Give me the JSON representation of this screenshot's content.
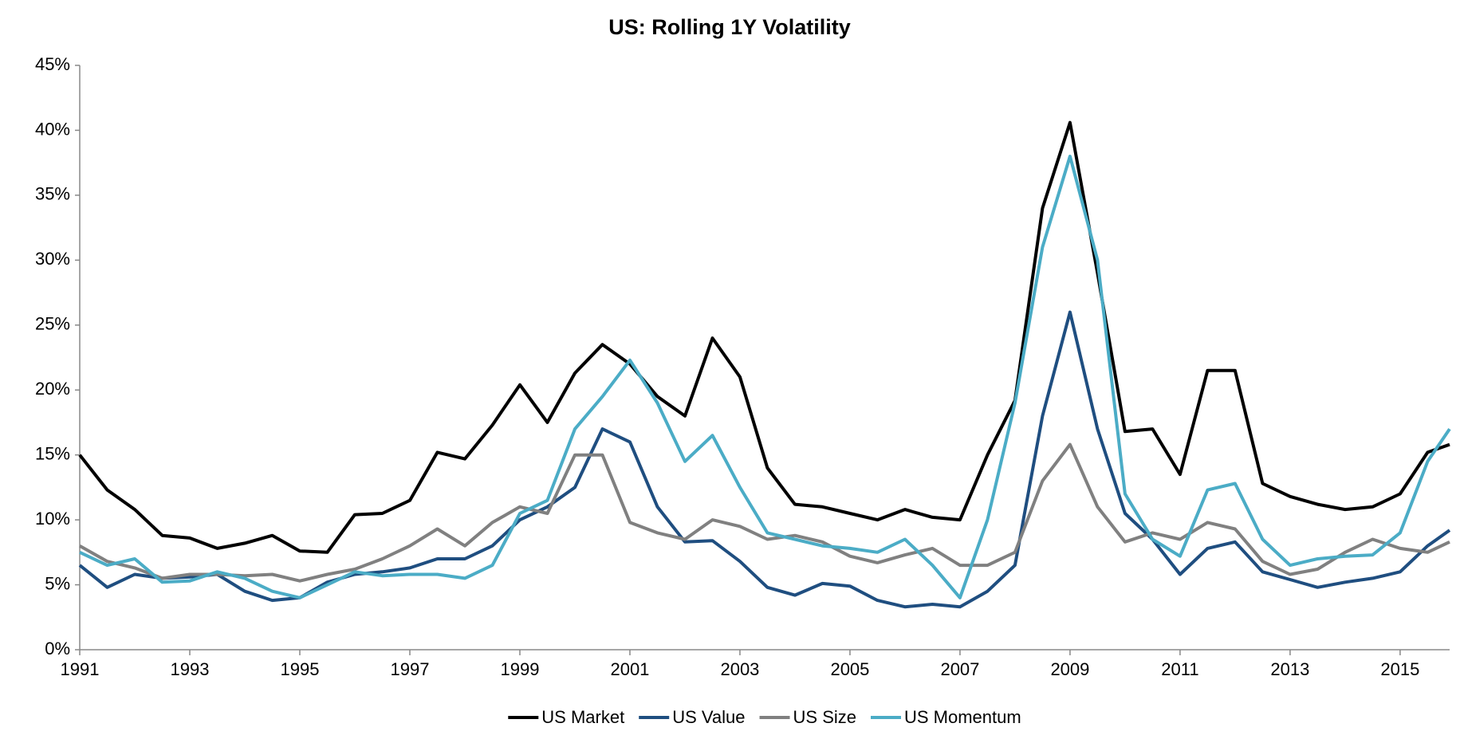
{
  "chart_data": {
    "type": "line",
    "title": "US: Rolling 1Y Volatility",
    "x": [
      1991,
      1991.5,
      1992,
      1992.5,
      1993,
      1993.5,
      1994,
      1994.5,
      1995,
      1995.5,
      1996,
      1996.5,
      1997,
      1997.5,
      1998,
      1998.5,
      1999,
      1999.5,
      2000,
      2000.5,
      2001,
      2001.5,
      2002,
      2002.5,
      2003,
      2003.5,
      2004,
      2004.5,
      2005,
      2005.5,
      2006,
      2006.5,
      2007,
      2007.5,
      2008,
      2008.5,
      2009,
      2009.5,
      2010,
      2010.5,
      2011,
      2011.5,
      2012,
      2012.5,
      2013,
      2013.5,
      2014,
      2014.5,
      2015,
      2015.5,
      2015.9
    ],
    "series": [
      {
        "name": "US Market",
        "color": "#000000",
        "values": [
          15,
          12.3,
          10.8,
          8.8,
          8.6,
          7.8,
          8.2,
          8.8,
          7.6,
          7.5,
          10.4,
          10.5,
          11.5,
          15.2,
          14.7,
          17.3,
          20.4,
          17.5,
          21.3,
          23.5,
          22.0,
          19.5,
          18.0,
          24.0,
          21.0,
          14.0,
          11.2,
          11.0,
          10.5,
          10.0,
          10.8,
          10.2,
          10.0,
          15.0,
          19.2,
          34.0,
          40.6,
          29.0,
          16.8,
          17.0,
          13.5,
          21.5,
          21.5,
          12.8,
          11.8,
          11.2,
          10.8,
          11.0,
          12.0,
          15.2,
          15.8
        ]
      },
      {
        "name": "US Value",
        "color": "#1f4e80",
        "values": [
          6.5,
          4.8,
          5.8,
          5.5,
          5.6,
          5.8,
          4.5,
          3.8,
          4.0,
          5.2,
          5.8,
          6.0,
          6.3,
          7.0,
          7.0,
          8.0,
          10.0,
          11.0,
          12.5,
          17.0,
          16.0,
          11.0,
          8.3,
          8.4,
          6.8,
          4.8,
          4.2,
          5.1,
          4.9,
          3.8,
          3.3,
          3.5,
          3.3,
          4.5,
          6.5,
          18.0,
          26.0,
          17.0,
          10.5,
          8.5,
          5.8,
          7.8,
          8.3,
          6.0,
          5.4,
          4.8,
          5.2,
          5.5,
          6.0,
          8.0,
          9.2
        ]
      },
      {
        "name": "US Size",
        "color": "#808080",
        "values": [
          8.0,
          6.8,
          6.3,
          5.5,
          5.8,
          5.8,
          5.7,
          5.8,
          5.3,
          5.8,
          6.2,
          7.0,
          8.0,
          9.3,
          8.0,
          9.8,
          11.0,
          10.5,
          15.0,
          15.0,
          9.8,
          9.0,
          8.5,
          10.0,
          9.5,
          8.5,
          8.8,
          8.3,
          7.2,
          6.7,
          7.3,
          7.8,
          6.5,
          6.5,
          7.5,
          13.0,
          15.8,
          11.0,
          8.3,
          9.0,
          8.5,
          9.8,
          9.3,
          6.8,
          5.8,
          6.2,
          7.5,
          8.5,
          7.8,
          7.5,
          8.3
        ]
      },
      {
        "name": "US Momentum",
        "color": "#4bacc6",
        "values": [
          7.5,
          6.5,
          7.0,
          5.2,
          5.3,
          6.0,
          5.5,
          4.5,
          4.0,
          5.0,
          6.0,
          5.7,
          5.8,
          5.8,
          5.5,
          6.5,
          10.5,
          11.5,
          17.0,
          19.5,
          22.3,
          19.0,
          14.5,
          16.5,
          12.5,
          9.0,
          8.5,
          8.0,
          7.8,
          7.5,
          8.5,
          6.5,
          4.0,
          10.0,
          19.0,
          31.0,
          38.0,
          30.0,
          12.0,
          8.5,
          7.2,
          12.3,
          12.8,
          8.5,
          6.5,
          7.0,
          7.2,
          7.3,
          9.0,
          14.5,
          17.0
        ]
      }
    ],
    "xlim": [
      1991,
      2015.9
    ],
    "xticks": [
      1991,
      1993,
      1995,
      1997,
      1999,
      2001,
      2003,
      2005,
      2007,
      2009,
      2011,
      2013,
      2015
    ],
    "ylim": [
      0,
      45
    ],
    "yticks": [
      {
        "value": 0,
        "label": "0%"
      },
      {
        "value": 5,
        "label": "5%"
      },
      {
        "value": 10,
        "label": "10%"
      },
      {
        "value": 15,
        "label": "15%"
      },
      {
        "value": 20,
        "label": "20%"
      },
      {
        "value": 25,
        "label": "25%"
      },
      {
        "value": 30,
        "label": "30%"
      },
      {
        "value": 35,
        "label": "35%"
      },
      {
        "value": 40,
        "label": "40%"
      },
      {
        "value": 45,
        "label": "45%"
      }
    ],
    "grid": false,
    "legend": "bottom"
  }
}
